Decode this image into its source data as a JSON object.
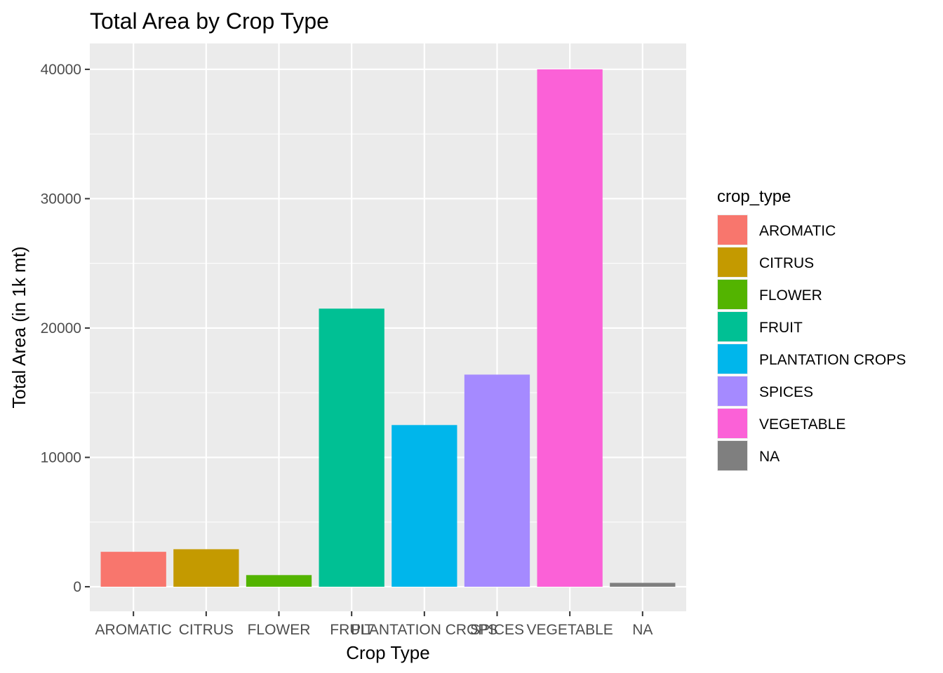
{
  "chart_data": {
    "type": "bar",
    "title": "Total Area by Crop Type",
    "xlabel": "Crop Type",
    "ylabel": "Total Area (in 1k mt)",
    "categories": [
      "AROMATIC",
      "CITRUS",
      "FLOWER",
      "FRUIT",
      "PLANTATION CROPS",
      "SPICES",
      "VEGETABLE",
      "NA"
    ],
    "values": [
      2700,
      2900,
      900,
      21500,
      12500,
      16400,
      40000,
      300
    ],
    "colors": [
      "#F8766D",
      "#C49A00",
      "#53B400",
      "#00C094",
      "#00B6EB",
      "#A58AFF",
      "#FB61D7",
      "#7F7F7F"
    ],
    "ylim": [
      -1900,
      42000
    ],
    "yticks": [
      0,
      10000,
      20000,
      30000,
      40000
    ],
    "ytick_labels": [
      "0",
      "10000",
      "20000",
      "30000",
      "40000"
    ],
    "grid": true,
    "legend": {
      "title": "crop_type",
      "placement": "right",
      "entries": [
        "AROMATIC",
        "CITRUS",
        "FLOWER",
        "FRUIT",
        "PLANTATION CROPS",
        "SPICES",
        "VEGETABLE",
        "NA"
      ]
    }
  }
}
